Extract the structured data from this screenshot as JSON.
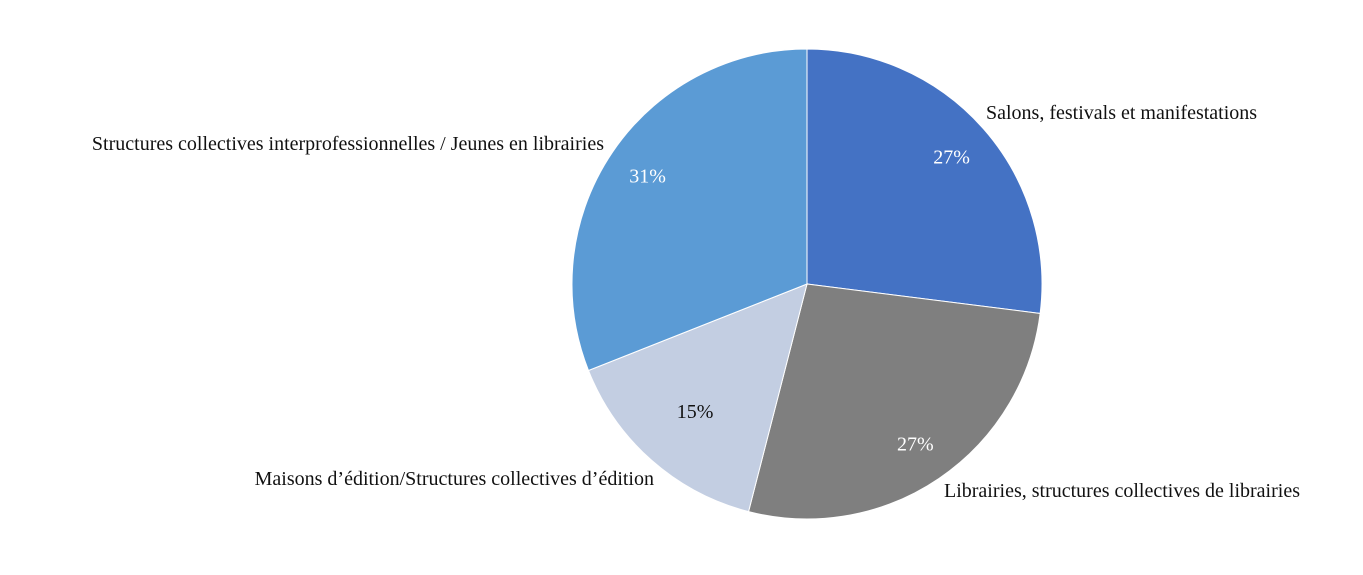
{
  "chart_data": {
    "type": "pie",
    "title": "",
    "slices": [
      {
        "label": "Salons, festivals et manifestations",
        "value": 27,
        "display": "27%",
        "color": "#4472C4",
        "label_color": "#FFFFFF"
      },
      {
        "label": "Librairies, structures collectives de librairies",
        "value": 27,
        "display": "27%",
        "color": "#7F7F7F",
        "label_color": "#FFFFFF"
      },
      {
        "label": "Maisons d’édition/Structures collectives d’édition",
        "value": 15,
        "display": "15%",
        "color": "#C3CEE2",
        "label_color": "#111111"
      },
      {
        "label": "Structures collectives interprofessionnelles / Jeunes en librairies",
        "value": 31,
        "display": "31%",
        "color": "#5B9BD5",
        "label_color": "#FFFFFF"
      }
    ]
  }
}
